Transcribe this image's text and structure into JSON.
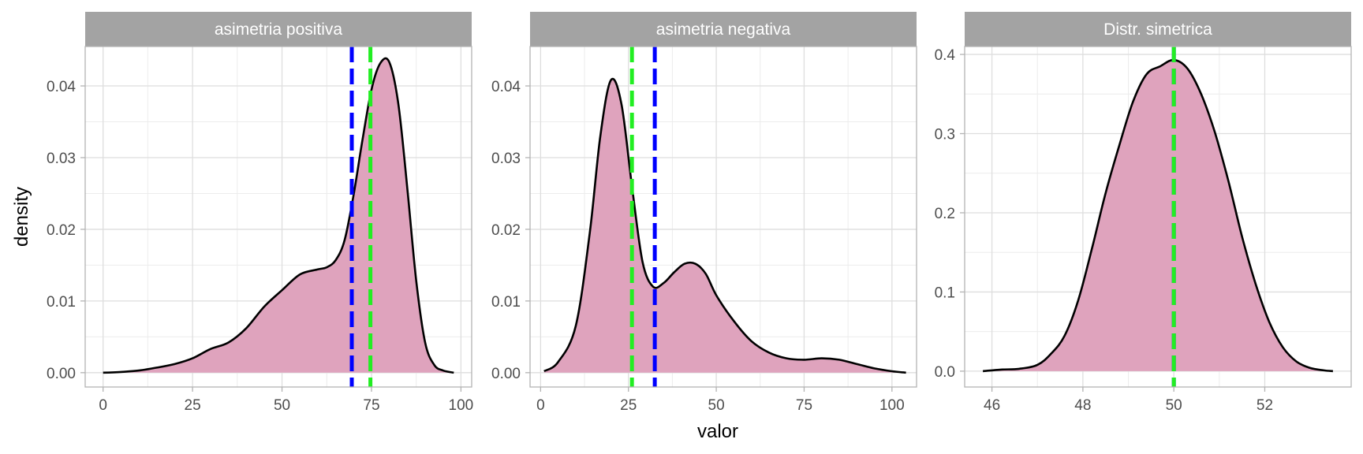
{
  "axis_titles": {
    "x": "valor",
    "y": "density"
  },
  "colors": {
    "fill": "#dfa3bd",
    "curve": "#000000",
    "mean_line": "#0000ff",
    "median_line": "#22ee22",
    "strip": "#a3a3a3",
    "grid": "#dedede",
    "panel_border": "#b3b3b3"
  },
  "chart_data": [
    {
      "type": "area",
      "title": "asimetria positiva",
      "xlim": [
        -5,
        103
      ],
      "ylim": [
        -0.002,
        0.0455
      ],
      "xticks": [
        0,
        25,
        50,
        75,
        100
      ],
      "xtick_labels": [
        "0",
        "25",
        "50",
        "75",
        "100"
      ],
      "yticks": [
        0,
        0.01,
        0.02,
        0.03,
        0.04
      ],
      "ytick_labels": [
        "0.00",
        "0.01",
        "0.02",
        "0.03",
        "0.04"
      ],
      "vlines": [
        {
          "kind": "mean",
          "x": 69.5,
          "color": "#0000ff"
        },
        {
          "kind": "median",
          "x": 74.7,
          "color": "#22ee22"
        }
      ],
      "x": [
        0,
        5,
        10,
        15,
        20,
        25,
        30,
        35,
        40,
        45,
        50,
        55,
        60,
        62.5,
        65,
        67.5,
        70,
        72.5,
        75,
        77.5,
        80,
        82.5,
        85,
        87.5,
        90,
        92.5,
        95,
        98
      ],
      "y": [
        0.0,
        0.0001,
        0.0003,
        0.0007,
        0.0012,
        0.002,
        0.0033,
        0.0042,
        0.0062,
        0.0092,
        0.0115,
        0.0137,
        0.0144,
        0.0147,
        0.0157,
        0.0185,
        0.0248,
        0.0325,
        0.0395,
        0.0432,
        0.0433,
        0.0375,
        0.0258,
        0.0128,
        0.0042,
        0.0011,
        0.0003,
        0.0
      ]
    },
    {
      "type": "area",
      "title": "asimetria negativa",
      "xlim": [
        -3,
        107
      ],
      "ylim": [
        -0.002,
        0.0455
      ],
      "xticks": [
        0,
        25,
        50,
        75,
        100
      ],
      "xtick_labels": [
        "0",
        "25",
        "50",
        "75",
        "100"
      ],
      "yticks": [
        0,
        0.01,
        0.02,
        0.03,
        0.04
      ],
      "ytick_labels": [
        "0.00",
        "0.01",
        "0.02",
        "0.03",
        "0.04"
      ],
      "vlines": [
        {
          "kind": "median",
          "x": 26,
          "color": "#22ee22"
        },
        {
          "kind": "mean",
          "x": 32.5,
          "color": "#0000ff"
        }
      ],
      "x": [
        1,
        5,
        10,
        14,
        17,
        20,
        23,
        26,
        29,
        32,
        35,
        38,
        41,
        44,
        47,
        50,
        55,
        60,
        65,
        70,
        75,
        80,
        85,
        90,
        95,
        100,
        104
      ],
      "y": [
        0.0002,
        0.0015,
        0.0065,
        0.0195,
        0.033,
        0.0408,
        0.0375,
        0.026,
        0.0155,
        0.012,
        0.0125,
        0.014,
        0.0152,
        0.0152,
        0.0138,
        0.0108,
        0.0072,
        0.0044,
        0.0028,
        0.002,
        0.0018,
        0.002,
        0.0018,
        0.0012,
        0.0006,
        0.0002,
        0.0
      ]
    },
    {
      "type": "area",
      "title": "Distr. simetrica",
      "xlim": [
        45.4,
        53.9
      ],
      "ylim": [
        -0.02,
        0.41
      ],
      "xticks": [
        46,
        48,
        50,
        52
      ],
      "xtick_labels": [
        "46",
        "48",
        "50",
        "52"
      ],
      "yticks": [
        0,
        0.1,
        0.2,
        0.3,
        0.4
      ],
      "ytick_labels": [
        "0.0",
        "0.1",
        "0.2",
        "0.3",
        "0.4"
      ],
      "vlines": [
        {
          "kind": "mean",
          "x": 50.0,
          "color": "#0000ff"
        },
        {
          "kind": "median",
          "x": 50.0,
          "color": "#22ee22"
        }
      ],
      "x": [
        45.8,
        46.2,
        46.6,
        47.0,
        47.3,
        47.6,
        47.9,
        48.2,
        48.5,
        48.8,
        49.1,
        49.4,
        49.7,
        50.0,
        50.3,
        50.6,
        50.9,
        51.2,
        51.5,
        51.8,
        52.1,
        52.4,
        52.7,
        53.0,
        53.3,
        53.5
      ],
      "y": [
        0.0,
        0.002,
        0.003,
        0.008,
        0.022,
        0.045,
        0.09,
        0.155,
        0.225,
        0.285,
        0.34,
        0.375,
        0.385,
        0.393,
        0.382,
        0.35,
        0.302,
        0.24,
        0.17,
        0.11,
        0.062,
        0.03,
        0.012,
        0.004,
        0.001,
        0.0
      ]
    }
  ]
}
